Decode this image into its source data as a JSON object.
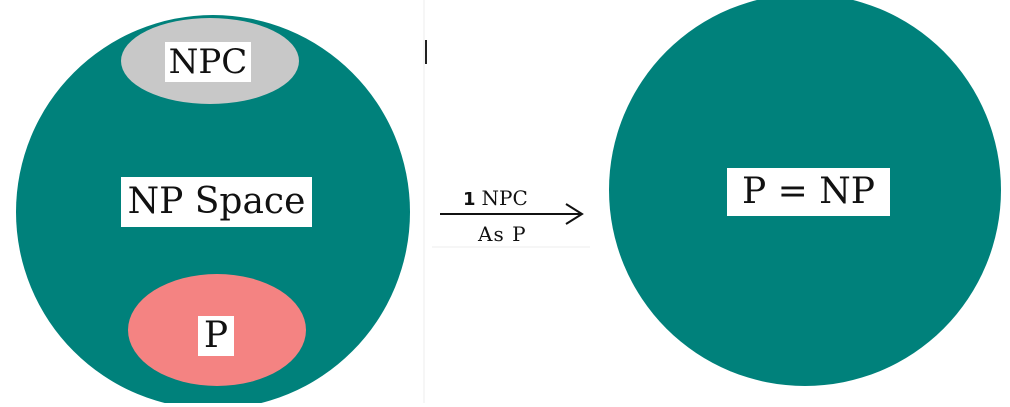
{
  "left_diagram": {
    "npc_label": "NPC",
    "space_label": "NP Space",
    "p_label": "P"
  },
  "transition": {
    "number": "1",
    "top_text": "NPC",
    "bottom_text": "As P"
  },
  "right_diagram": {
    "equation_label": "P = NP"
  },
  "colors": {
    "np_space": "#00817B",
    "npc_region": "#C8C8C8",
    "p_region": "#F48382",
    "label_background": "#FFFFFF",
    "arrow": "#111111"
  }
}
